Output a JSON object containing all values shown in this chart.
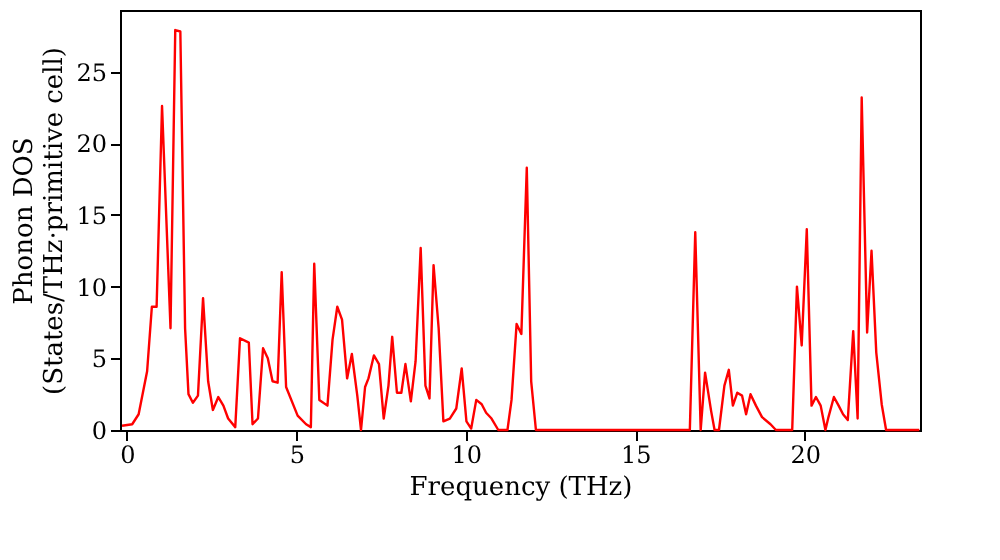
{
  "chart_data": {
    "type": "line",
    "xlabel": "Frequency (THz)",
    "ylabel": "Phonon DOS\n(States/THz·primitive cell)",
    "xlim": [
      -0.2,
      23.4
    ],
    "ylim": [
      0,
      29.3
    ],
    "xticks": [
      0,
      5,
      10,
      15,
      20
    ],
    "yticks": [
      0,
      5,
      10,
      15,
      20,
      25
    ],
    "grid": false,
    "legend": false,
    "series": [
      {
        "color": "#ff0000",
        "x": [
          -0.14,
          0.16,
          0.35,
          0.6,
          0.74,
          0.88,
          1.04,
          1.29,
          1.43,
          1.58,
          1.72,
          1.82,
          1.95,
          2.1,
          2.25,
          2.4,
          2.54,
          2.7,
          2.85,
          2.99,
          3.2,
          3.34,
          3.6,
          3.71,
          3.87,
          4.02,
          4.16,
          4.3,
          4.45,
          4.57,
          4.7,
          5.04,
          5.29,
          5.43,
          5.53,
          5.68,
          5.92,
          6.07,
          6.21,
          6.35,
          6.5,
          6.64,
          6.8,
          6.91,
          7.03,
          7.13,
          7.29,
          7.44,
          7.58,
          7.72,
          7.83,
          7.97,
          8.1,
          8.22,
          8.38,
          8.52,
          8.67,
          8.81,
          8.93,
          9.05,
          9.2,
          9.34,
          9.53,
          9.72,
          9.88,
          10.02,
          10.16,
          10.31,
          10.47,
          10.6,
          10.76,
          10.96,
          11.23,
          11.35,
          11.5,
          11.64,
          11.8,
          11.93,
          12.07,
          16.61,
          16.77,
          16.93,
          17.06,
          17.24,
          17.34,
          17.47,
          17.63,
          17.76,
          17.88,
          18.01,
          18.15,
          18.27,
          18.4,
          18.56,
          18.74,
          18.99,
          19.15,
          19.63,
          19.77,
          19.91,
          20.06,
          20.2,
          20.33,
          20.47,
          20.61,
          20.7,
          20.86,
          21.0,
          21.13,
          21.27,
          21.43,
          21.56,
          21.68,
          21.84,
          21.97,
          22.11,
          22.27,
          22.4,
          23.38
        ],
        "values": [
          0.3,
          0.4,
          1.1,
          4.1,
          8.6,
          8.6,
          22.6,
          7.1,
          27.9,
          27.8,
          7.1,
          2.5,
          1.9,
          2.4,
          9.2,
          3.4,
          1.4,
          2.3,
          1.7,
          0.8,
          0.2,
          6.4,
          6.1,
          0.4,
          0.8,
          5.7,
          5.0,
          3.4,
          3.3,
          11.0,
          3.0,
          1.0,
          0.4,
          0.2,
          11.6,
          2.1,
          1.7,
          6.3,
          8.6,
          7.7,
          3.6,
          5.3,
          2.4,
          0,
          3.0,
          3.6,
          5.2,
          4.6,
          0.8,
          3.1,
          6.5,
          2.6,
          2.6,
          4.6,
          2.0,
          4.8,
          12.7,
          3.1,
          2.2,
          11.5,
          7.1,
          0.6,
          0.8,
          1.5,
          4.3,
          0.6,
          0.1,
          2.1,
          1.8,
          1.2,
          0.8,
          0,
          0,
          2.1,
          7.4,
          6.7,
          18.3,
          3.4,
          0,
          0,
          13.8,
          0,
          4.0,
          1.3,
          0,
          0,
          3.1,
          4.2,
          1.7,
          2.6,
          2.4,
          1.1,
          2.5,
          1.7,
          0.9,
          0.4,
          0,
          0,
          10.0,
          5.9,
          14.0,
          1.7,
          2.3,
          1.7,
          0,
          0.9,
          2.3,
          1.7,
          1.1,
          0.7,
          6.9,
          0.8,
          23.2,
          6.8,
          12.5,
          5.4,
          1.8,
          0,
          0
        ]
      }
    ]
  }
}
